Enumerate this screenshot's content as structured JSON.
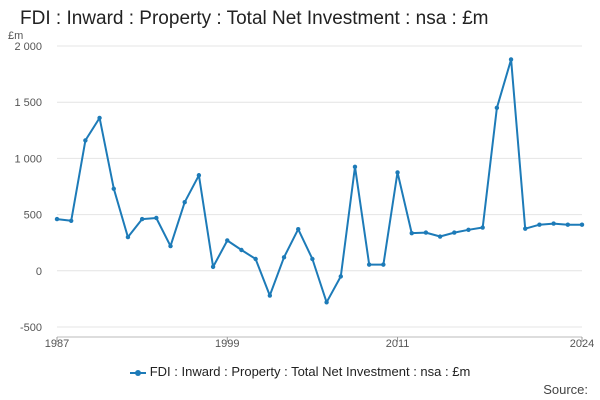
{
  "title": "FDI : Inward : Property : Total Net Investment : nsa : £m",
  "source_label": "Source:",
  "chart_data": {
    "type": "line",
    "title": "FDI : Inward : Property : Total Net Investment : nsa : £m",
    "ylabel": "£m",
    "xlabel": "",
    "x_range": [
      1987,
      2024
    ],
    "ylim": [
      -500,
      2000
    ],
    "y_ticks": [
      -500,
      0,
      500,
      1000,
      1500,
      2000
    ],
    "y_tick_labels": [
      "-500",
      "0",
      "500",
      "1 000",
      "1 500",
      "2 000"
    ],
    "x_tick_labels": [
      "1987",
      "1999",
      "2011",
      "2024"
    ],
    "x_tick_values": [
      1987,
      1999,
      2011,
      2024
    ],
    "grid": true,
    "legend": "bottom",
    "series": [
      {
        "name": "FDI : Inward : Property : Total Net Investment : nsa : £m",
        "color": "#1d7bb8",
        "x": [
          1987,
          1988,
          1989,
          1990,
          1991,
          1992,
          1993,
          1994,
          1995,
          1996,
          1997,
          1998,
          1999,
          2000,
          2001,
          2002,
          2003,
          2004,
          2005,
          2006,
          2007,
          2008,
          2009,
          2010,
          2011,
          2012,
          2013,
          2014,
          2015,
          2016,
          2017,
          2018,
          2019,
          2020,
          2021,
          2022,
          2023,
          2024
        ],
        "values": [
          460,
          445,
          1160,
          1360,
          730,
          300,
          460,
          470,
          220,
          610,
          850,
          35,
          270,
          185,
          105,
          -220,
          120,
          370,
          105,
          -280,
          -50,
          925,
          55,
          55,
          875,
          335,
          340,
          305,
          340,
          365,
          385,
          1450,
          1880,
          375,
          410,
          420,
          410,
          410
        ]
      }
    ]
  }
}
